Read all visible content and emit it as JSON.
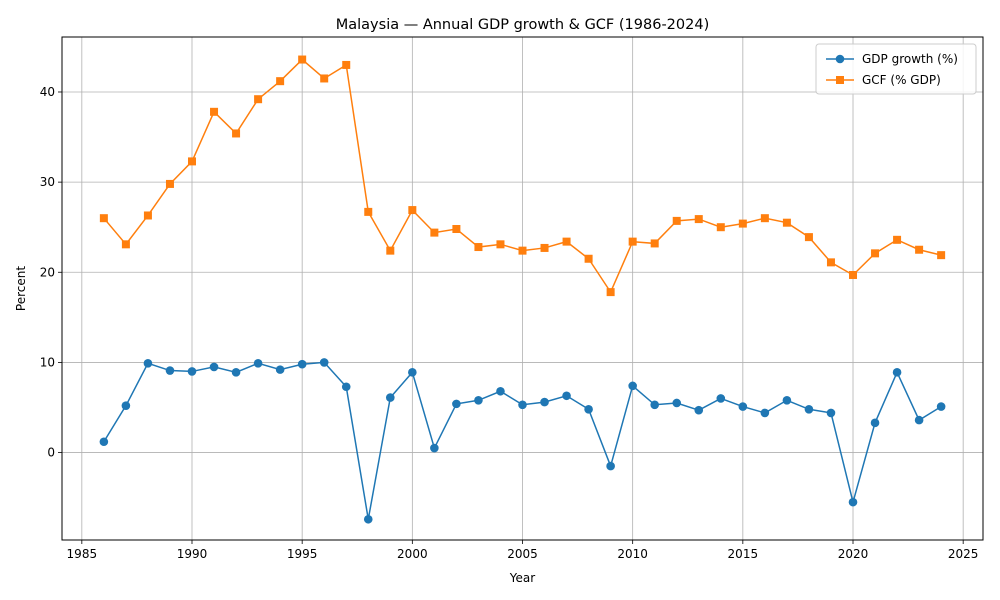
{
  "chart_data": {
    "type": "line",
    "title": "Malaysia — Annual GDP growth & GCF (1986-2024)",
    "xlabel": "Year",
    "ylabel": "Percent",
    "xlim": [
      1984.1,
      2025.9
    ],
    "ylim": [
      -9.7,
      46.1
    ],
    "xticks": [
      1985,
      1990,
      1995,
      2000,
      2005,
      2010,
      2015,
      2020,
      2025
    ],
    "yticks": [
      0,
      10,
      20,
      30,
      40
    ],
    "grid": true,
    "legend_position": "top-right",
    "x": [
      1986,
      1987,
      1988,
      1989,
      1990,
      1991,
      1992,
      1993,
      1994,
      1995,
      1996,
      1997,
      1998,
      1999,
      2000,
      2001,
      2002,
      2003,
      2004,
      2005,
      2006,
      2007,
      2008,
      2009,
      2010,
      2011,
      2012,
      2013,
      2014,
      2015,
      2016,
      2017,
      2018,
      2019,
      2020,
      2021,
      2022,
      2023,
      2024
    ],
    "series": [
      {
        "name": "GDP growth (%)",
        "color": "#1f77b4",
        "marker": "circle",
        "values": [
          1.2,
          5.2,
          9.9,
          9.1,
          9.0,
          9.5,
          8.9,
          9.9,
          9.2,
          9.8,
          10.0,
          7.3,
          -7.4,
          6.1,
          8.9,
          0.5,
          5.4,
          5.8,
          6.8,
          5.3,
          5.6,
          6.3,
          4.8,
          -1.5,
          7.4,
          5.3,
          5.5,
          4.7,
          6.0,
          5.1,
          4.4,
          5.8,
          4.8,
          4.4,
          -5.5,
          3.3,
          8.9,
          3.6,
          5.1
        ]
      },
      {
        "name": "GCF (% GDP)",
        "color": "#ff7f0e",
        "marker": "square",
        "values": [
          26.0,
          23.1,
          26.3,
          29.8,
          32.3,
          37.8,
          35.4,
          39.2,
          41.2,
          43.6,
          41.5,
          43.0,
          26.7,
          22.4,
          26.9,
          24.4,
          24.8,
          22.8,
          23.1,
          22.4,
          22.7,
          23.4,
          21.5,
          17.8,
          23.4,
          23.2,
          25.7,
          25.9,
          25.0,
          25.4,
          26.0,
          25.5,
          23.9,
          21.1,
          19.7,
          22.1,
          23.6,
          22.5,
          21.9
        ]
      }
    ]
  }
}
